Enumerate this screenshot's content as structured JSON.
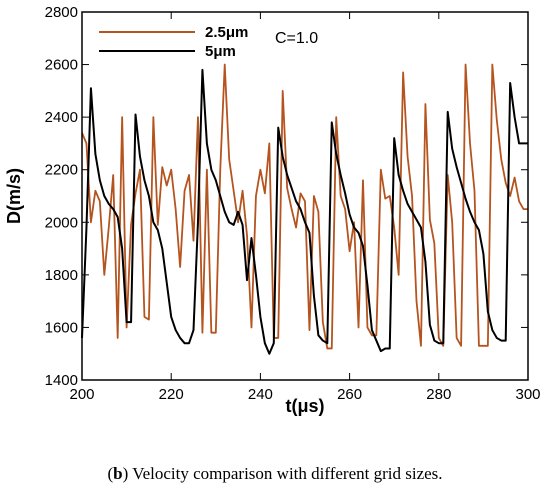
{
  "chart_data": {
    "type": "line",
    "xlabel": "t(μs)",
    "ylabel": "D(m/s)",
    "xlim": [
      200,
      300
    ],
    "ylim": [
      1400,
      2800
    ],
    "x_ticks": [
      "200",
      "220",
      "240",
      "260",
      "280",
      "300"
    ],
    "y_ticks": [
      "1400",
      "1600",
      "1800",
      "2000",
      "2200",
      "2400",
      "2600",
      "2800"
    ],
    "annotation": "C=1.0",
    "legend_position": "top-left",
    "series": [
      {
        "name": "2.5μm",
        "color": "#b5541f",
        "x": [
          200,
          201,
          202,
          203,
          204,
          205,
          206,
          207,
          208,
          209,
          210,
          211,
          212,
          213,
          214,
          215,
          216,
          217,
          218,
          219,
          220,
          221,
          222,
          223,
          224,
          225,
          226,
          227,
          228,
          229,
          230,
          231,
          232,
          233,
          234,
          235,
          236,
          237,
          238,
          239,
          240,
          241,
          242,
          243,
          244,
          245,
          246,
          247,
          248,
          249,
          250,
          251,
          252,
          253,
          254,
          255,
          256,
          257,
          258,
          259,
          260,
          261,
          262,
          263,
          264,
          265,
          266,
          267,
          268,
          269,
          270,
          271,
          272,
          273,
          274,
          275,
          276,
          277,
          278,
          279,
          280,
          281,
          282,
          283,
          284,
          285,
          286,
          287,
          288,
          289,
          290,
          291,
          292,
          293,
          294,
          295,
          296,
          297,
          298,
          299,
          300
        ],
        "values": [
          2340,
          2300,
          2000,
          2120,
          2080,
          1800,
          1980,
          2180,
          1560,
          2400,
          1600,
          1990,
          2110,
          2200,
          1640,
          1630,
          2400,
          1990,
          2210,
          2140,
          2200,
          2050,
          1830,
          2120,
          2180,
          1930,
          2400,
          1580,
          2200,
          1580,
          1580,
          2200,
          2600,
          2240,
          2120,
          2000,
          2120,
          1950,
          1600,
          2100,
          2200,
          2110,
          2300,
          1560,
          1560,
          2500,
          2130,
          2050,
          1980,
          2110,
          2080,
          1590,
          2100,
          2040,
          1620,
          1520,
          1520,
          2400,
          2100,
          2050,
          1890,
          2000,
          1600,
          2160,
          1600,
          1570,
          1570,
          2200,
          2090,
          2100,
          1980,
          1800,
          2570,
          2250,
          2100,
          1700,
          1530,
          2450,
          2010,
          1920,
          1560,
          1530,
          2180,
          2000,
          1560,
          1530,
          2600,
          2300,
          2120,
          1530,
          1530,
          1530,
          2600,
          2390,
          2240,
          2150,
          2100,
          2170,
          2080,
          2050,
          2050
        ]
      },
      {
        "name": "5μm",
        "color": "#000000",
        "x": [
          200,
          201,
          202,
          203,
          204,
          205,
          206,
          207,
          208,
          209,
          210,
          211,
          212,
          213,
          214,
          215,
          216,
          217,
          218,
          219,
          220,
          221,
          222,
          223,
          224,
          225,
          226,
          227,
          228,
          229,
          230,
          231,
          232,
          233,
          234,
          235,
          236,
          237,
          238,
          239,
          240,
          241,
          242,
          243,
          244,
          245,
          246,
          247,
          248,
          249,
          250,
          251,
          252,
          253,
          254,
          255,
          256,
          257,
          258,
          259,
          260,
          261,
          262,
          263,
          264,
          265,
          266,
          267,
          268,
          269,
          270,
          271,
          272,
          273,
          274,
          275,
          276,
          277,
          278,
          279,
          280,
          281,
          282,
          283,
          284,
          285,
          286,
          287,
          288,
          289,
          290,
          291,
          292,
          293,
          294,
          295,
          296,
          297,
          298,
          299,
          300
        ],
        "values": [
          1560,
          1980,
          2510,
          2260,
          2160,
          2100,
          2070,
          2050,
          2020,
          1900,
          1620,
          1620,
          2410,
          2250,
          2160,
          2100,
          2000,
          1970,
          1900,
          1770,
          1640,
          1590,
          1560,
          1540,
          1540,
          1590,
          2000,
          2580,
          2300,
          2200,
          2160,
          2100,
          2040,
          2000,
          1990,
          2040,
          1990,
          1780,
          1940,
          1800,
          1640,
          1540,
          1500,
          1540,
          2360,
          2250,
          2180,
          2130,
          2080,
          2050,
          2000,
          1960,
          1720,
          1570,
          1550,
          1540,
          2380,
          2260,
          2180,
          2110,
          2030,
          1980,
          1960,
          1910,
          1760,
          1590,
          1550,
          1510,
          1520,
          1520,
          2320,
          2180,
          2120,
          2070,
          2040,
          2010,
          1980,
          1850,
          1610,
          1550,
          1540,
          1540,
          2420,
          2280,
          2210,
          2150,
          2090,
          2040,
          2000,
          1970,
          1880,
          1660,
          1590,
          1560,
          1550,
          1550,
          2530,
          2400,
          2300,
          2300,
          2300
        ]
      }
    ]
  },
  "caption": {
    "prefix": "(",
    "bold": "b",
    "suffix": ") Velocity comparison with different grid sizes."
  }
}
